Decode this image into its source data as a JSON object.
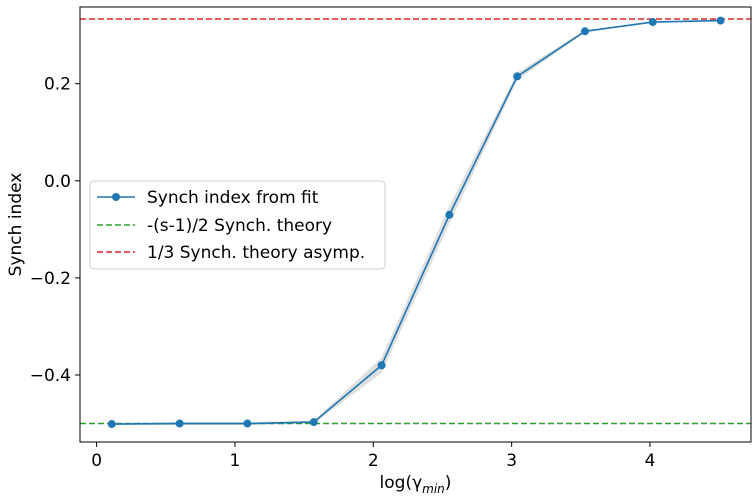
{
  "chart_data": {
    "type": "line",
    "xlabel": "log(γ",
    "xlabel_sub": "min",
    "xlabel_close": ")",
    "ylabel": "Synch index",
    "xlim": [
      -0.12,
      4.73
    ],
    "ylim": [
      -0.538,
      0.358
    ],
    "x_ticks": [
      0,
      1,
      2,
      3,
      4
    ],
    "x_tick_labels": [
      "0",
      "1",
      "2",
      "3",
      "4"
    ],
    "y_ticks": [
      -0.4,
      -0.2,
      0.0,
      0.2
    ],
    "y_tick_labels": [
      "−0.4",
      "−0.2",
      "0.0",
      "0.2"
    ],
    "grid": false,
    "legend_position": "center-left",
    "series": [
      {
        "name": "Synch index from fit",
        "color": "#1f77b4",
        "style": "line-with-markers",
        "x": [
          0.11,
          0.6,
          1.09,
          1.57,
          2.06,
          2.55,
          3.04,
          3.53,
          4.02,
          4.51
        ],
        "y": [
          -0.501,
          -0.5,
          -0.5,
          -0.497,
          -0.38,
          -0.07,
          0.215,
          0.308,
          0.327,
          0.33
        ],
        "band_lower": [
          -0.503,
          -0.503,
          -0.503,
          -0.5,
          -0.396,
          -0.088,
          0.207,
          0.306,
          0.326,
          0.329
        ],
        "band_upper": [
          -0.499,
          -0.497,
          -0.497,
          -0.494,
          -0.364,
          -0.052,
          0.223,
          0.31,
          0.328,
          0.331
        ]
      },
      {
        "name": "-(s-1)/2 Synch. theory",
        "color": "#2ca02c",
        "style": "dashed-hline",
        "y": -0.5
      },
      {
        "name": "1/3 Synch. theory asymp.",
        "color": "#d62728",
        "style": "dashed-hline",
        "y": 0.3333
      }
    ],
    "colors": {
      "band": "#d9d9d9",
      "axes": "#000000"
    }
  }
}
